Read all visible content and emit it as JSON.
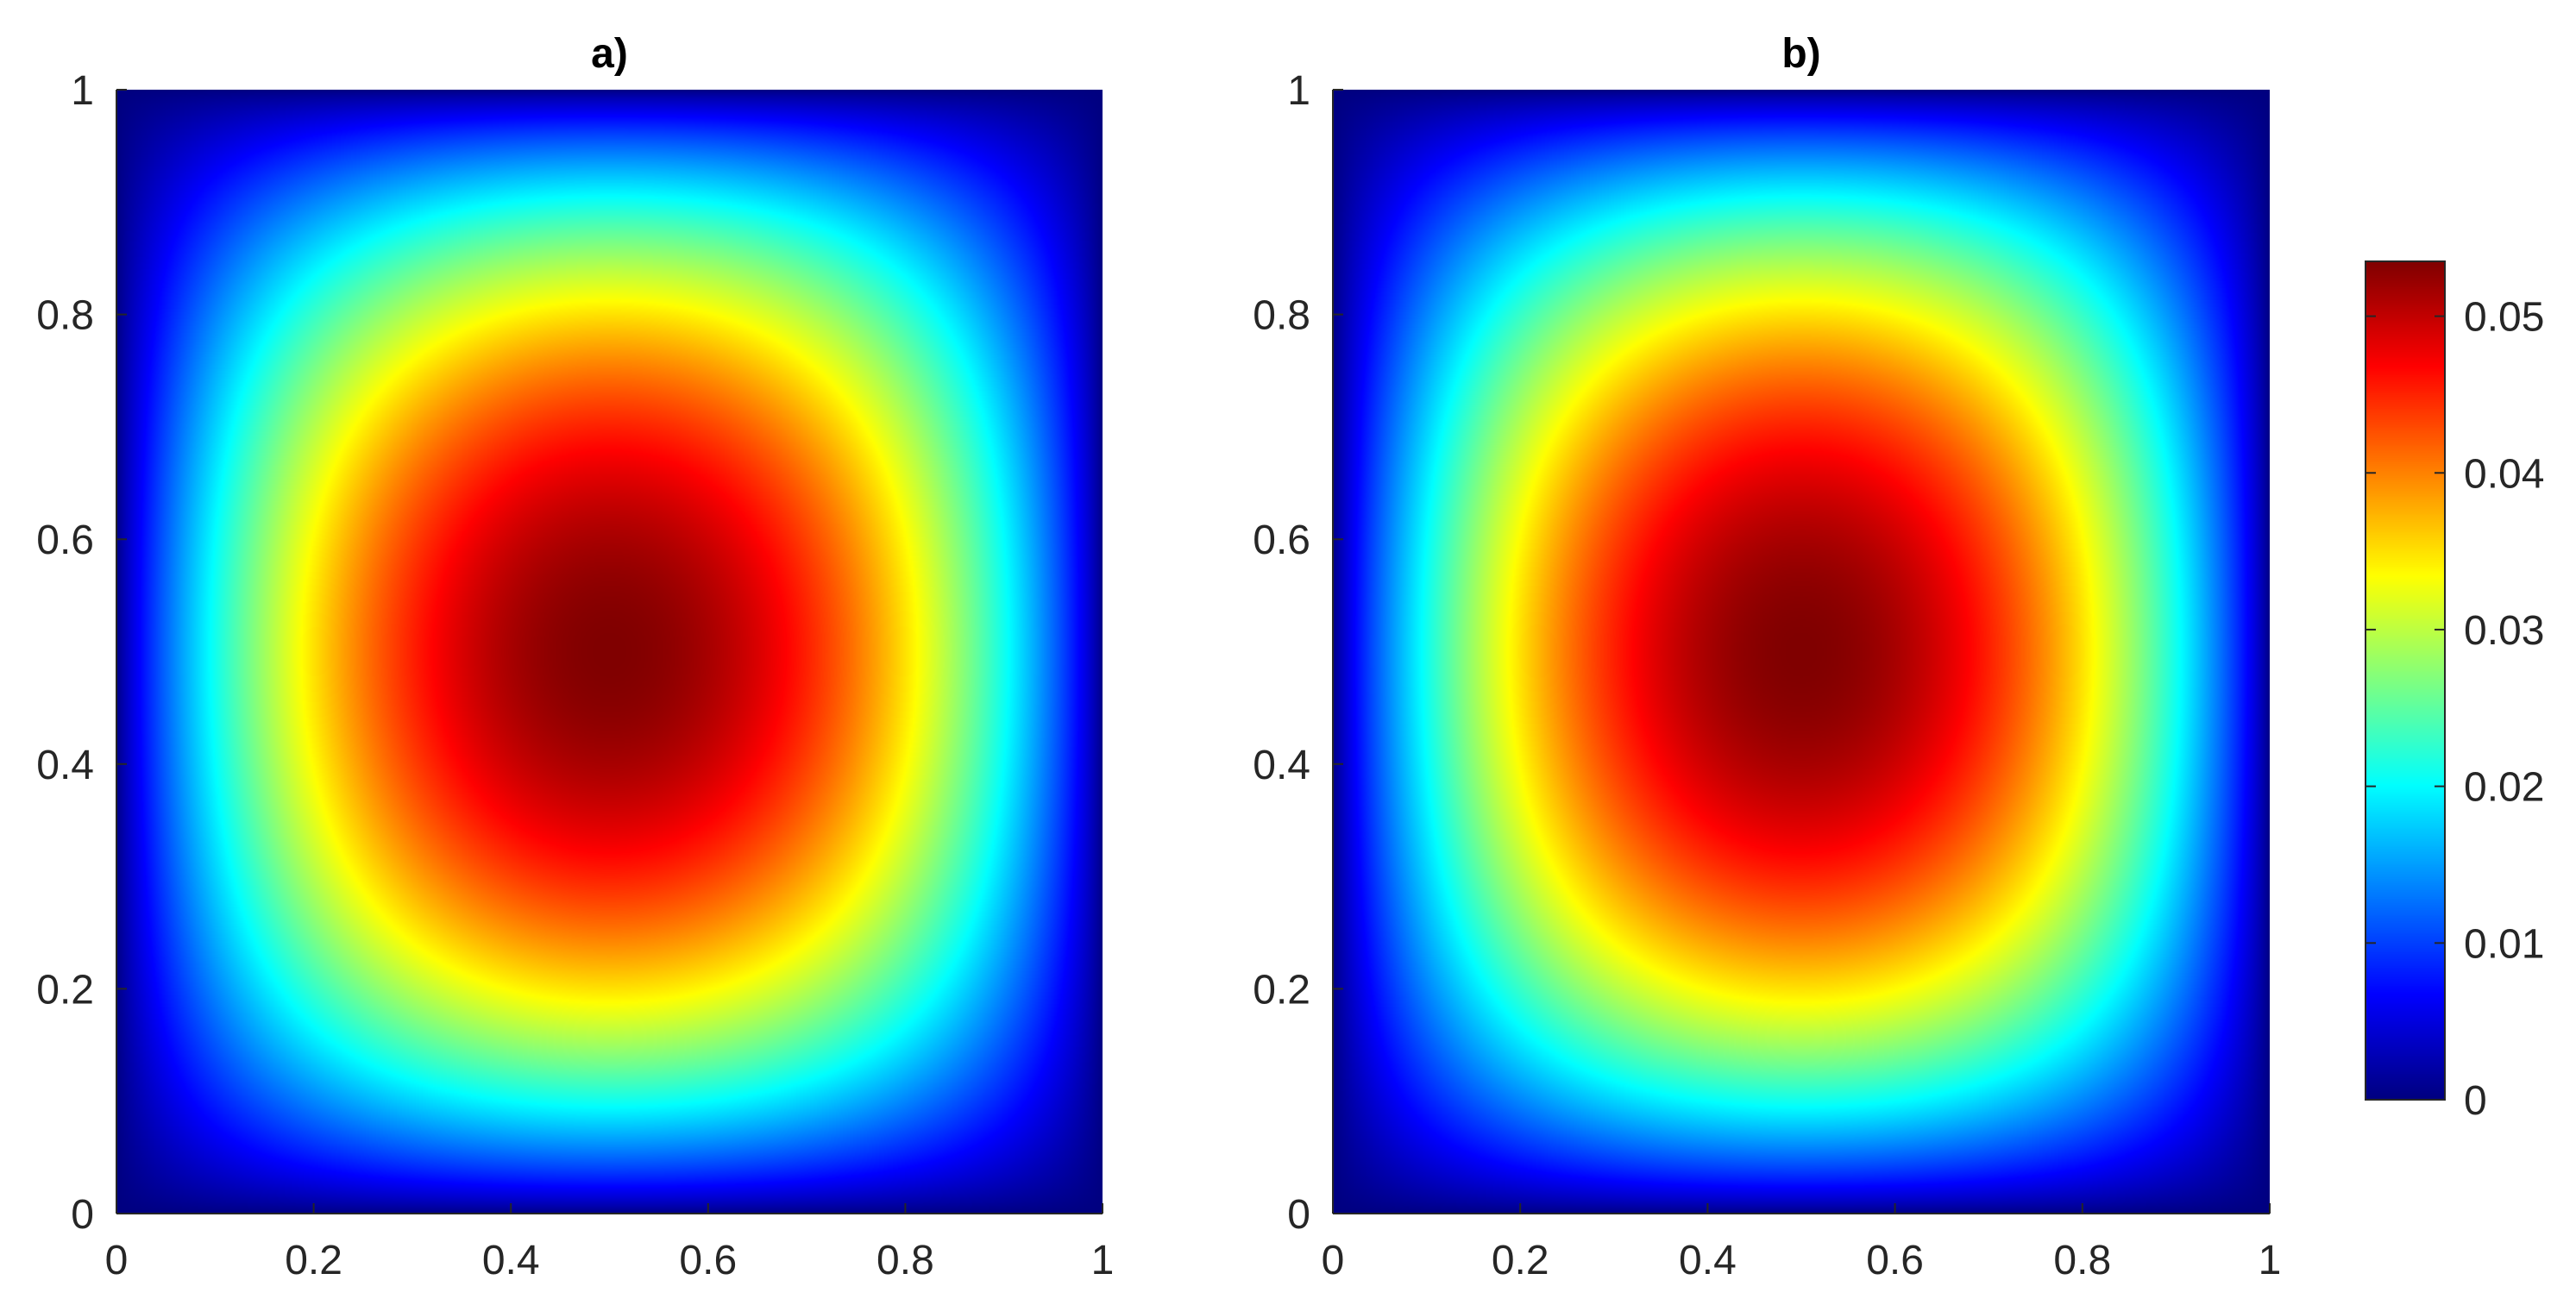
{
  "chart_data": [
    {
      "type": "heatmap",
      "title": "a)",
      "xlim": [
        0,
        1
      ],
      "ylim": [
        0,
        1
      ],
      "x_ticks": [
        "0",
        "0.2",
        "0.4",
        "0.6",
        "0.8",
        "1"
      ],
      "y_ticks": [
        "0",
        "0.2",
        "0.4",
        "0.6",
        "0.8",
        "1"
      ],
      "colormap": "jet",
      "value_range": [
        0,
        0.0535
      ],
      "peak": {
        "x": 0.5,
        "y": 0.5,
        "value": 0.0535
      },
      "boundary_value": 0,
      "contours": [
        {
          "value": 0.03,
          "x_range": [
            0.2,
            0.8
          ],
          "y_range": [
            0.2,
            0.8
          ]
        }
      ]
    },
    {
      "type": "heatmap",
      "title": "b)",
      "xlim": [
        0,
        1
      ],
      "ylim": [
        0,
        1
      ],
      "x_ticks": [
        "0",
        "0.2",
        "0.4",
        "0.6",
        "0.8",
        "1"
      ],
      "y_ticks": [
        "0",
        "0.2",
        "0.4",
        "0.6",
        "0.8",
        "1"
      ],
      "colormap": "jet",
      "value_range": [
        0,
        0.0535
      ],
      "peak": {
        "x": 0.5,
        "y": 0.5,
        "value": 0.0535
      },
      "boundary_value": 0,
      "contours": [
        {
          "value": 0.03,
          "x_range": [
            0.2,
            0.8
          ],
          "y_range": [
            0.2,
            0.8
          ]
        }
      ]
    }
  ],
  "colorbar": {
    "ticks": [
      "0",
      "0.01",
      "0.02",
      "0.03",
      "0.04",
      "0.05"
    ],
    "tick_values": [
      0,
      0.01,
      0.02,
      0.03,
      0.04,
      0.05
    ],
    "range": [
      0,
      0.0535
    ],
    "colormap": "jet"
  },
  "colors": {
    "axis": "#262626",
    "background": "#ffffff"
  }
}
